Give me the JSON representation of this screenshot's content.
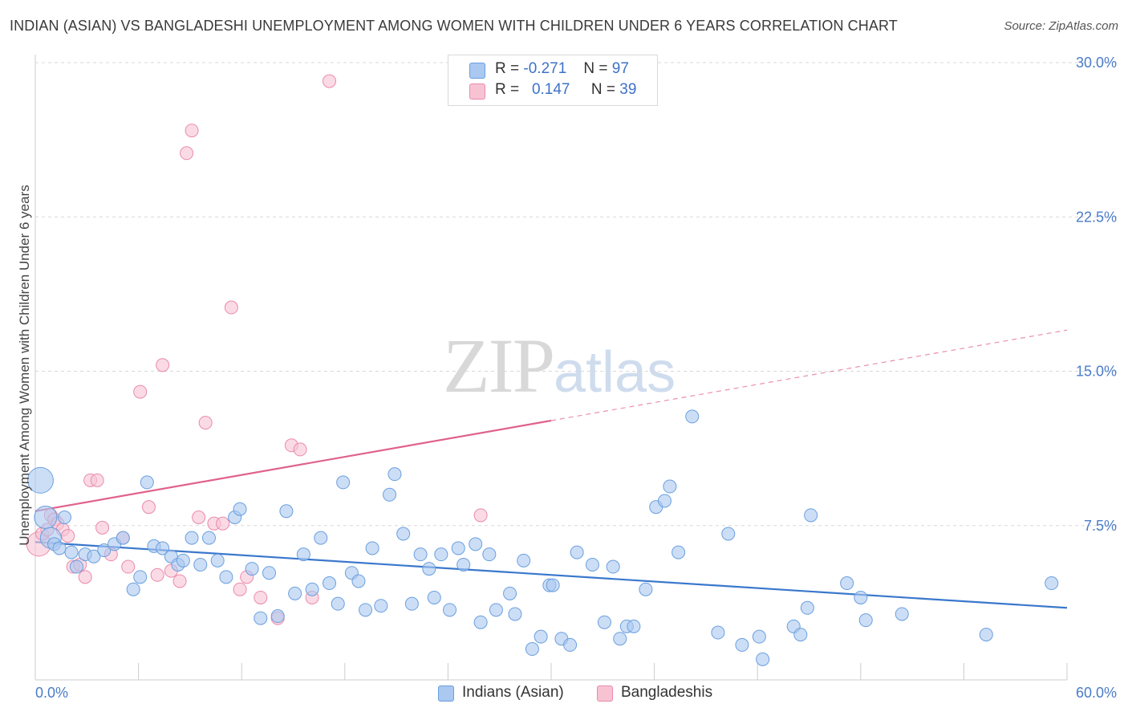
{
  "title": "INDIAN (ASIAN) VS BANGLADESHI UNEMPLOYMENT AMONG WOMEN WITH CHILDREN UNDER 6 YEARS CORRELATION CHART",
  "source": "Source: ZipAtlas.com",
  "watermark": {
    "zip": "ZIP",
    "atlas": "atlas"
  },
  "legend": {
    "indians": {
      "r_label": "R =",
      "r_value": "-0.271",
      "n_label": "N =",
      "n_value": "97"
    },
    "bangladeshis": {
      "r_label": "R =",
      "r_value": "0.147",
      "n_label": "N =",
      "n_value": "39"
    }
  },
  "colors": {
    "indians_fill": "#aac8f0",
    "indians_stroke": "#6a9fde",
    "indians_line": "#3a78cc",
    "bangladeshis_fill": "#f7c3d3",
    "bangladeshis_stroke": "#eb8aab",
    "bangladeshis_line": "#e0628c",
    "grid": "#d8d8d8",
    "axis_label": "#4a7cc9"
  },
  "chart_data": {
    "type": "scatter",
    "title": "INDIAN (ASIAN) VS BANGLADESHI UNEMPLOYMENT AMONG WOMEN WITH CHILDREN UNDER 6 YEARS CORRELATION CHART",
    "xlabel": "",
    "ylabel": "Unemployment Among Women with Children Under 6 years",
    "xlim": [
      0,
      60
    ],
    "ylim": [
      0,
      30
    ],
    "x_tick_labels": [
      "0.0%",
      "60.0%"
    ],
    "y_ticks": [
      7.5,
      15.0,
      22.5,
      30.0
    ],
    "y_tick_labels": [
      "7.5%",
      "15.0%",
      "22.5%",
      "30.0%"
    ],
    "grid": "horizontal dashed",
    "legend_position": "top-center",
    "series": [
      {
        "name": "Indians (Asian)",
        "trend": {
          "x": [
            0,
            60
          ],
          "y": [
            6.7,
            3.5
          ],
          "dashed_from": null
        },
        "points": [
          [
            0.3,
            9.7
          ],
          [
            0.6,
            7.9
          ],
          [
            0.9,
            6.9
          ],
          [
            1.1,
            6.6
          ],
          [
            1.4,
            6.4
          ],
          [
            1.7,
            7.9
          ],
          [
            2.1,
            6.2
          ],
          [
            2.4,
            5.5
          ],
          [
            2.9,
            6.1
          ],
          [
            3.4,
            6.0
          ],
          [
            4.0,
            6.3
          ],
          [
            4.6,
            6.6
          ],
          [
            5.1,
            6.9
          ],
          [
            5.7,
            4.4
          ],
          [
            6.1,
            5.0
          ],
          [
            6.5,
            9.6
          ],
          [
            6.9,
            6.5
          ],
          [
            7.4,
            6.4
          ],
          [
            7.9,
            6.0
          ],
          [
            8.3,
            5.6
          ],
          [
            8.6,
            5.8
          ],
          [
            9.1,
            6.9
          ],
          [
            9.6,
            5.6
          ],
          [
            10.1,
            6.9
          ],
          [
            10.6,
            5.8
          ],
          [
            11.1,
            5.0
          ],
          [
            11.6,
            7.9
          ],
          [
            11.9,
            8.3
          ],
          [
            12.6,
            5.4
          ],
          [
            13.1,
            3.0
          ],
          [
            13.6,
            5.2
          ],
          [
            14.1,
            3.1
          ],
          [
            14.6,
            8.2
          ],
          [
            15.1,
            4.2
          ],
          [
            15.6,
            6.1
          ],
          [
            16.1,
            4.4
          ],
          [
            16.6,
            6.9
          ],
          [
            17.1,
            4.7
          ],
          [
            17.6,
            3.7
          ],
          [
            17.9,
            9.6
          ],
          [
            18.4,
            5.2
          ],
          [
            18.8,
            4.8
          ],
          [
            19.2,
            3.4
          ],
          [
            19.6,
            6.4
          ],
          [
            20.1,
            3.6
          ],
          [
            20.6,
            9.0
          ],
          [
            20.9,
            10.0
          ],
          [
            21.4,
            7.1
          ],
          [
            21.9,
            3.7
          ],
          [
            22.4,
            6.1
          ],
          [
            22.9,
            5.4
          ],
          [
            23.2,
            4.0
          ],
          [
            23.6,
            6.1
          ],
          [
            24.1,
            3.4
          ],
          [
            24.6,
            6.4
          ],
          [
            24.9,
            5.6
          ],
          [
            25.6,
            6.6
          ],
          [
            25.9,
            2.8
          ],
          [
            26.4,
            6.1
          ],
          [
            26.8,
            3.4
          ],
          [
            27.6,
            4.2
          ],
          [
            27.9,
            3.2
          ],
          [
            28.4,
            5.8
          ],
          [
            28.9,
            1.5
          ],
          [
            29.4,
            2.1
          ],
          [
            29.9,
            4.6
          ],
          [
            30.1,
            4.6
          ],
          [
            30.6,
            2.0
          ],
          [
            31.1,
            1.7
          ],
          [
            31.5,
            6.2
          ],
          [
            32.4,
            5.6
          ],
          [
            33.1,
            2.8
          ],
          [
            33.6,
            5.5
          ],
          [
            34.0,
            2.0
          ],
          [
            34.4,
            2.6
          ],
          [
            34.8,
            2.6
          ],
          [
            35.5,
            4.4
          ],
          [
            36.1,
            8.4
          ],
          [
            36.6,
            8.7
          ],
          [
            36.9,
            9.4
          ],
          [
            37.4,
            6.2
          ],
          [
            38.2,
            12.8
          ],
          [
            39.7,
            2.3
          ],
          [
            40.3,
            7.1
          ],
          [
            41.1,
            1.7
          ],
          [
            42.1,
            2.1
          ],
          [
            42.3,
            1.0
          ],
          [
            44.1,
            2.6
          ],
          [
            44.5,
            2.2
          ],
          [
            44.9,
            3.5
          ],
          [
            45.1,
            8.0
          ],
          [
            47.2,
            4.7
          ],
          [
            48.0,
            4.0
          ],
          [
            48.3,
            2.9
          ],
          [
            50.4,
            3.2
          ],
          [
            55.3,
            2.2
          ],
          [
            59.1,
            4.7
          ]
        ]
      },
      {
        "name": "Bangladeshis",
        "trend": {
          "x": [
            0,
            60
          ],
          "y": [
            8.2,
            17.0
          ],
          "dashed_from": 30
        },
        "points": [
          [
            0.2,
            6.6
          ],
          [
            0.4,
            7.1
          ],
          [
            0.7,
            7.3
          ],
          [
            0.9,
            8.0
          ],
          [
            1.1,
            7.8
          ],
          [
            1.3,
            7.6
          ],
          [
            1.6,
            7.3
          ],
          [
            1.9,
            7.0
          ],
          [
            2.2,
            5.5
          ],
          [
            2.6,
            5.6
          ],
          [
            2.9,
            5.0
          ],
          [
            3.2,
            9.7
          ],
          [
            3.6,
            9.7
          ],
          [
            3.9,
            7.4
          ],
          [
            4.4,
            6.1
          ],
          [
            5.1,
            6.9
          ],
          [
            5.4,
            5.5
          ],
          [
            6.1,
            14.0
          ],
          [
            6.6,
            8.4
          ],
          [
            7.1,
            5.1
          ],
          [
            7.4,
            15.3
          ],
          [
            7.9,
            5.3
          ],
          [
            8.4,
            4.8
          ],
          [
            8.8,
            25.6
          ],
          [
            9.1,
            26.7
          ],
          [
            9.5,
            7.9
          ],
          [
            9.9,
            12.5
          ],
          [
            10.4,
            7.6
          ],
          [
            10.9,
            7.6
          ],
          [
            11.4,
            18.1
          ],
          [
            11.9,
            4.4
          ],
          [
            12.3,
            5.0
          ],
          [
            13.1,
            4.0
          ],
          [
            14.1,
            3.0
          ],
          [
            14.9,
            11.4
          ],
          [
            15.4,
            11.2
          ],
          [
            16.1,
            4.0
          ],
          [
            17.1,
            29.1
          ],
          [
            25.9,
            8.0
          ]
        ]
      }
    ]
  }
}
